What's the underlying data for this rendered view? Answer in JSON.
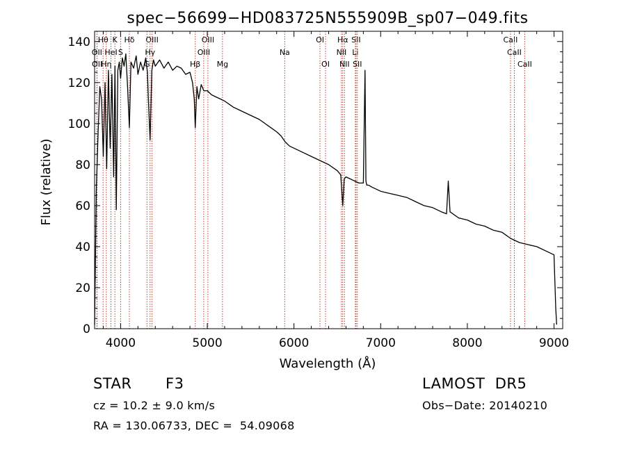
{
  "chart_data": {
    "type": "line",
    "title": "spec−56699−HD083725N555909B_sp07−049.fits",
    "xlabel": "Wavelength (Å)",
    "ylabel": "Flux (relative)",
    "xlim": [
      3700,
      9100
    ],
    "ylim": [
      0,
      145
    ],
    "x_ticks": [
      4000,
      5000,
      6000,
      7000,
      8000,
      9000
    ],
    "y_ticks": [
      0,
      20,
      40,
      60,
      80,
      100,
      120,
      140
    ],
    "grid": false,
    "series": [
      {
        "x": [
          3700,
          3720,
          3740,
          3760,
          3780,
          3800,
          3820,
          3840,
          3860,
          3880,
          3900,
          3920,
          3935,
          3950,
          3968,
          3985,
          4000,
          4020,
          4040,
          4060,
          4080,
          4101,
          4120,
          4150,
          4180,
          4200,
          4230,
          4260,
          4290,
          4310,
          4320,
          4340,
          4360,
          4380,
          4400,
          4450,
          4500,
          4550,
          4600,
          4650,
          4700,
          4750,
          4800,
          4830,
          4850,
          4861,
          4880,
          4900,
          4930,
          4960,
          5000,
          5050,
          5100,
          5150,
          5200,
          5300,
          5400,
          5500,
          5600,
          5700,
          5800,
          5850,
          5900,
          5950,
          6000,
          6100,
          6200,
          6300,
          6400,
          6500,
          6540,
          6563,
          6580,
          6600,
          6650,
          6700,
          6750,
          6800,
          6820,
          6830,
          6840,
          6860,
          6900,
          7000,
          7100,
          7200,
          7300,
          7400,
          7500,
          7600,
          7700,
          7760,
          7780,
          7800,
          7900,
          8000,
          8100,
          8200,
          8300,
          8400,
          8500,
          8600,
          8700,
          8800,
          8900,
          9000,
          9020,
          9030
        ],
        "y": [
          2,
          68,
          95,
          118,
          112,
          84,
          120,
          78,
          126,
          88,
          124,
          74,
          128,
          58,
          126,
          130,
          122,
          132,
          128,
          134,
          118,
          98,
          130,
          127,
          133,
          124,
          130,
          126,
          132,
          125,
          112,
          92,
          126,
          131,
          128,
          131,
          127,
          130,
          126,
          128,
          127,
          124,
          125,
          120,
          112,
          98,
          118,
          112,
          119,
          116,
          116,
          114,
          113,
          112,
          111,
          108,
          106,
          104,
          102,
          99,
          96,
          94,
          91,
          89,
          88,
          86,
          84,
          82,
          80,
          77,
          75,
          60,
          73,
          74,
          73,
          72,
          71,
          71,
          126,
          72,
          70,
          70,
          69,
          67,
          66,
          65,
          64,
          62,
          60,
          59,
          57,
          56,
          72,
          57,
          54,
          53,
          51,
          50,
          48,
          47,
          44,
          42,
          41,
          40,
          38,
          36,
          10,
          2
        ]
      }
    ],
    "line_markers": [
      {
        "name": "Hθ",
        "wavelength": 3798,
        "row": 0
      },
      {
        "name": "K",
        "wavelength": 3934,
        "row": 0
      },
      {
        "name": "Hδ",
        "wavelength": 4101,
        "row": 0
      },
      {
        "name": "OIII",
        "wavelength": 4363,
        "row": 0
      },
      {
        "name": "OIII",
        "wavelength": 5007,
        "row": 0
      },
      {
        "name": "OI",
        "wavelength": 6300,
        "row": 0
      },
      {
        "name": "Hα",
        "wavelength": 6563,
        "row": 0
      },
      {
        "name": "SII",
        "wavelength": 6716,
        "row": 0
      },
      {
        "name": "CaII",
        "wavelength": 8498,
        "row": 0
      },
      {
        "name": "OII",
        "wavelength": 3727,
        "row": 1
      },
      {
        "name": "HeI",
        "wavelength": 3889,
        "row": 1
      },
      {
        "name": "S",
        "wavelength": 4000,
        "row": 1
      },
      {
        "name": "Hγ",
        "wavelength": 4340,
        "row": 1
      },
      {
        "name": "OIII",
        "wavelength": 4959,
        "row": 1
      },
      {
        "name": "Na",
        "wavelength": 5893,
        "row": 1
      },
      {
        "name": "NII",
        "wavelength": 6548,
        "row": 1
      },
      {
        "name": "Li",
        "wavelength": 6708,
        "row": 1
      },
      {
        "name": "CaII",
        "wavelength": 8542,
        "row": 1
      },
      {
        "name": "OII",
        "wavelength": 3729,
        "row": 2
      },
      {
        "name": "Hη",
        "wavelength": 3835,
        "row": 2
      },
      {
        "name": "G",
        "wavelength": 4304,
        "row": 2
      },
      {
        "name": "Hβ",
        "wavelength": 4861,
        "row": 2
      },
      {
        "name": "Mg",
        "wavelength": 5175,
        "row": 2
      },
      {
        "name": "OI",
        "wavelength": 6364,
        "row": 2
      },
      {
        "name": "NII",
        "wavelength": 6583,
        "row": 2
      },
      {
        "name": "SII",
        "wavelength": 6731,
        "row": 2
      },
      {
        "name": "CaII",
        "wavelength": 8662,
        "row": 2
      }
    ]
  },
  "info": {
    "object_class": "STAR",
    "subclass": "F3",
    "survey": "LAMOST  DR5",
    "redshift": "cz = 10.2 ± 9.0 km/s",
    "obs_date": "Obs−Date: 20140210",
    "coords": "RA = 130.06733, DEC =  54.09068"
  }
}
